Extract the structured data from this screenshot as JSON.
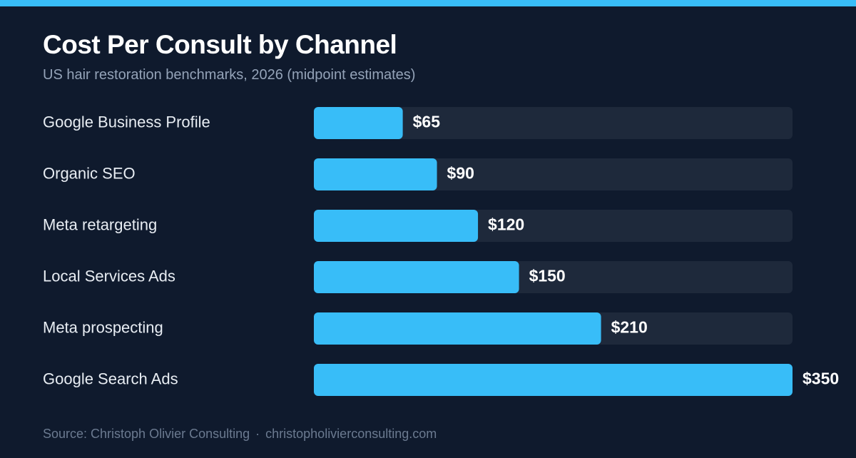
{
  "header": {
    "title": "Cost Per Consult by Channel",
    "subtitle": "US hair restoration benchmarks, 2026 (midpoint estimates)"
  },
  "colors": {
    "background": "#0f1a2d",
    "accent": "#38bdf8",
    "bar_fill": "#38bdf8",
    "track": "#1e293b"
  },
  "chart_data": {
    "type": "bar",
    "orientation": "horizontal",
    "title": "Cost Per Consult by Channel",
    "subtitle": "US hair restoration benchmarks, 2026 (midpoint estimates)",
    "categories": [
      "Google Business Profile",
      "Organic SEO",
      "Meta retargeting",
      "Local Services Ads",
      "Meta prospecting",
      "Google Search Ads"
    ],
    "values": [
      65,
      90,
      120,
      150,
      210,
      350
    ],
    "value_labels": [
      "$65",
      "$90",
      "$120",
      "$150",
      "$210",
      "$350"
    ],
    "xlim": [
      0,
      350
    ],
    "grid": false,
    "legend": "none",
    "xlabel": "",
    "ylabel": ""
  },
  "footer": {
    "source": "Source: Christoph Olivier Consulting",
    "separator": "·",
    "url": "christopholivierconsulting.com"
  }
}
